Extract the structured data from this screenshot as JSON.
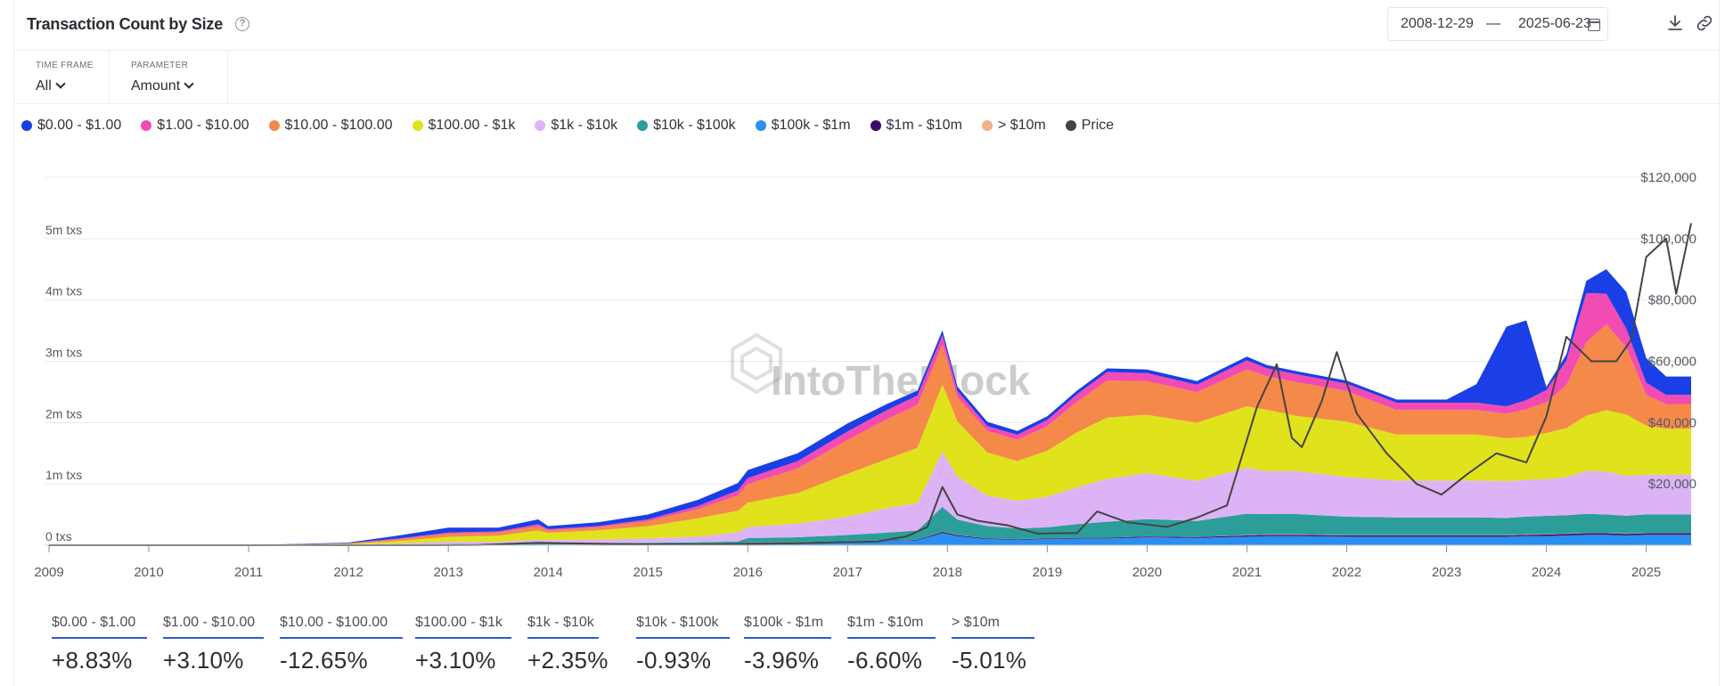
{
  "header": {
    "title": "Transaction Count by Size",
    "help_icon": "question-circle-icon",
    "date_from": "2008-12-29",
    "date_sep": "—",
    "date_to": "2025-06-23",
    "calendar_icon": "calendar-icon",
    "download_icon": "download-icon",
    "link_icon": "link-icon"
  },
  "filters": {
    "time_frame_label": "TIME FRAME",
    "time_frame_value": "All",
    "parameter_label": "PARAMETER",
    "parameter_value": "Amount"
  },
  "watermark": "IntoTheBlock",
  "colors": {
    "b0": "#1a3fe6",
    "b1": "#f24bb3",
    "b2": "#f5894a",
    "b3": "#e0e21c",
    "b4": "#dcb3f5",
    "b5": "#2c9e9a",
    "b6": "#2a8ff0",
    "b7": "#3b0a6b",
    "b8": "#f0b08a",
    "price": "#444444"
  },
  "stats": [
    {
      "label": "$0.00 - $1.00",
      "value": "+8.83%"
    },
    {
      "label": "$1.00 - $10.00",
      "value": "+3.10%"
    },
    {
      "label": "$10.00 - $100.00",
      "value": "-12.65%"
    },
    {
      "label": "$100.00 - $1k",
      "value": "+3.10%"
    },
    {
      "label": "$1k - $10k",
      "value": "+2.35%"
    },
    {
      "label": "$10k - $100k",
      "value": "-0.93%"
    },
    {
      "label": "$100k - $1m",
      "value": "-3.96%"
    },
    {
      "label": "$1m - $10m",
      "value": "-6.60%"
    },
    {
      "label": "> $10m",
      "value": "-5.01%"
    }
  ],
  "chart_data": {
    "type": "area",
    "stacked": true,
    "title": "Transaction Count by Size",
    "x_tick_labels": [
      "2009",
      "2010",
      "2011",
      "2012",
      "2013",
      "2014",
      "2015",
      "2016",
      "2017",
      "2018",
      "2019",
      "2020",
      "2021",
      "2022",
      "2023",
      "2024",
      "2025"
    ],
    "x": [
      2009.0,
      2010.0,
      2011.0,
      2012.0,
      2012.5,
      2013.0,
      2013.5,
      2013.9,
      2014.0,
      2014.5,
      2015.0,
      2015.5,
      2015.9,
      2016.0,
      2016.5,
      2017.0,
      2017.4,
      2017.7,
      2017.95,
      2018.1,
      2018.4,
      2018.7,
      2019.0,
      2019.3,
      2019.6,
      2020.0,
      2020.5,
      2021.0,
      2021.2,
      2021.5,
      2022.0,
      2022.5,
      2023.0,
      2023.3,
      2023.6,
      2023.8,
      2024.0,
      2024.2,
      2024.4,
      2024.6,
      2024.8,
      2025.0,
      2025.2,
      2025.45
    ],
    "y_left_ticks": [
      "0 txs",
      "1m txs",
      "2m txs",
      "3m txs",
      "4m txs",
      "5m txs"
    ],
    "y_left_range": [
      0,
      6000000
    ],
    "y_right_ticks": [
      "$20,000",
      "$40,000",
      "$60,000",
      "$80,000",
      "$100,000",
      "$120,000"
    ],
    "y_right_range": [
      0,
      120000
    ],
    "legend_position": "top-left",
    "grid": true,
    "series": [
      {
        "name": "$100k - $1m",
        "color_key": "b6",
        "values": [
          0,
          0,
          0,
          2,
          3,
          5,
          5,
          8,
          10,
          10,
          12,
          15,
          18,
          40,
          45,
          60,
          70,
          80,
          200,
          150,
          100,
          90,
          100,
          110,
          110,
          130,
          120,
          140,
          150,
          150,
          140,
          140,
          140,
          140,
          140,
          150,
          150,
          160,
          170,
          170,
          160,
          170,
          170,
          170
        ]
      },
      {
        "name": "$1m - $10m",
        "color_key": "b7",
        "values": [
          0,
          0,
          0,
          0,
          1,
          1,
          1,
          2,
          2,
          2,
          3,
          3,
          4,
          5,
          5,
          6,
          7,
          8,
          20,
          15,
          10,
          10,
          10,
          12,
          12,
          14,
          14,
          20,
          22,
          22,
          20,
          20,
          20,
          20,
          20,
          22,
          24,
          25,
          26,
          26,
          25,
          26,
          26,
          26
        ]
      },
      {
        "name": "> $10m",
        "color_key": "b8",
        "values": [
          0,
          0,
          0,
          0,
          0,
          1,
          1,
          1,
          1,
          1,
          1,
          1,
          1,
          1,
          1,
          1,
          1,
          2,
          4,
          3,
          2,
          2,
          2,
          2,
          2,
          3,
          3,
          5,
          6,
          6,
          5,
          5,
          5,
          5,
          5,
          5,
          6,
          6,
          6,
          6,
          6,
          6,
          6,
          6
        ]
      },
      {
        "name": "$10k - $100k",
        "color_key": "b5",
        "values": [
          0,
          0,
          0,
          3,
          5,
          10,
          10,
          20,
          20,
          20,
          25,
          30,
          40,
          70,
          80,
          100,
          130,
          150,
          400,
          250,
          200,
          170,
          180,
          220,
          260,
          280,
          260,
          350,
          330,
          330,
          300,
          290,
          290,
          290,
          280,
          290,
          300,
          300,
          310,
          300,
          290,
          300,
          300,
          300
        ]
      },
      {
        "name": "$1k - $10k",
        "color_key": "b4",
        "values": [
          0,
          0,
          0,
          5,
          20,
          40,
          40,
          60,
          50,
          60,
          70,
          90,
          150,
          180,
          220,
          300,
          400,
          450,
          900,
          700,
          500,
          450,
          500,
          600,
          700,
          750,
          650,
          750,
          700,
          700,
          650,
          600,
          600,
          600,
          600,
          600,
          600,
          620,
          700,
          700,
          650,
          650,
          650,
          650
        ]
      },
      {
        "name": "$100.00 - $1k",
        "color_key": "b3",
        "values": [
          0,
          0,
          0,
          10,
          40,
          80,
          100,
          150,
          120,
          150,
          200,
          300,
          350,
          400,
          500,
          700,
          800,
          900,
          1100,
          900,
          700,
          650,
          750,
          900,
          1000,
          950,
          950,
          1000,
          1000,
          900,
          900,
          750,
          750,
          750,
          700,
          700,
          750,
          800,
          900,
          1000,
          1000,
          800,
          750,
          750
        ]
      },
      {
        "name": "$10.00 - $100.00",
        "color_key": "b2",
        "values": [
          0,
          0,
          0,
          10,
          30,
          50,
          50,
          70,
          40,
          50,
          80,
          150,
          250,
          300,
          400,
          550,
          650,
          700,
          650,
          400,
          350,
          350,
          400,
          500,
          600,
          550,
          500,
          600,
          550,
          550,
          500,
          400,
          400,
          400,
          400,
          450,
          500,
          700,
          1200,
          1400,
          1100,
          500,
          400,
          400
        ]
      },
      {
        "name": "$1.00 - $10.00",
        "color_key": "b1",
        "values": [
          0,
          0,
          0,
          3,
          10,
          20,
          20,
          30,
          20,
          20,
          30,
          50,
          80,
          100,
          120,
          140,
          150,
          150,
          150,
          100,
          80,
          80,
          100,
          120,
          140,
          130,
          120,
          150,
          130,
          130,
          120,
          120,
          120,
          120,
          120,
          150,
          200,
          400,
          800,
          500,
          300,
          200,
          150,
          150
        ]
      },
      {
        "name": "$0.00 - $1.00",
        "color_key": "b0",
        "values": [
          0,
          0,
          0,
          10,
          50,
          80,
          60,
          80,
          50,
          60,
          80,
          100,
          120,
          130,
          130,
          130,
          100,
          80,
          80,
          70,
          70,
          60,
          60,
          60,
          60,
          60,
          60,
          60,
          50,
          50,
          50,
          50,
          50,
          300,
          1300,
          1300,
          50,
          100,
          200,
          400,
          600,
          400,
          300,
          300
        ]
      },
      {
        "name": "Price",
        "color_key": "price",
        "is_price": true,
        "x": [
          2009.0,
          2010.5,
          2011.0,
          2011.5,
          2012.0,
          2012.9,
          2013.3,
          2013.9,
          2014.2,
          2014.9,
          2015.5,
          2016.0,
          2016.5,
          2016.9,
          2017.3,
          2017.6,
          2017.8,
          2017.95,
          2018.1,
          2018.3,
          2018.6,
          2018.9,
          2019.3,
          2019.5,
          2019.8,
          2020.2,
          2020.5,
          2020.8,
          2020.95,
          2021.1,
          2021.3,
          2021.45,
          2021.55,
          2021.75,
          2021.9,
          2022.1,
          2022.4,
          2022.7,
          2022.95,
          2023.2,
          2023.5,
          2023.8,
          2024.0,
          2024.2,
          2024.45,
          2024.7,
          2024.85,
          2025.0,
          2025.2,
          2025.3,
          2025.45
        ],
        "values": [
          0,
          0,
          0,
          15,
          10,
          13,
          100,
          800,
          600,
          320,
          250,
          430,
          650,
          1000,
          1200,
          3000,
          6000,
          19000,
          10000,
          8000,
          6500,
          3800,
          4000,
          11000,
          7500,
          6000,
          9000,
          13000,
          29000,
          45000,
          59000,
          35000,
          32000,
          47000,
          63000,
          43000,
          30000,
          20000,
          16500,
          23000,
          30000,
          27000,
          42000,
          68000,
          60000,
          60000,
          67000,
          94000,
          100000,
          82000,
          105000
        ]
      }
    ]
  }
}
